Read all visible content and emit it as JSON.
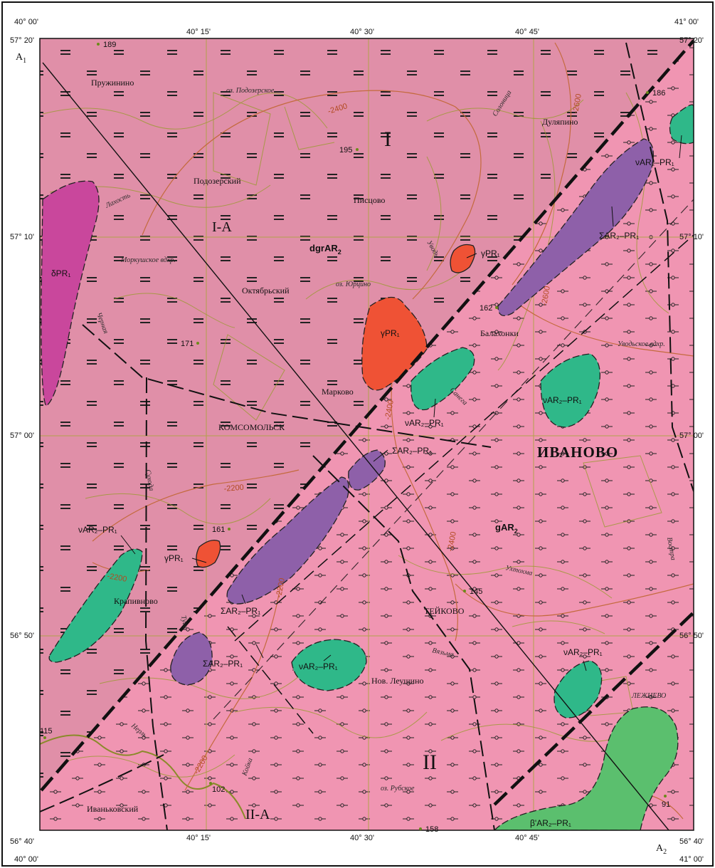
{
  "map": {
    "colors": {
      "background_dgr": "#e08fa8",
      "background_g": "#f095b2",
      "delta": "#c9479c",
      "gamma": "#ef5235",
      "nu": "#2fb889",
      "sigma": "#8e60a9",
      "beta": "#5bbf6e",
      "grid": "#b2a24a",
      "isoline": "#b9613a",
      "roads": "#8a8a2a"
    },
    "coords": {
      "top_lon": [
        "40° 00'",
        "40° 15'",
        "40° 30'",
        "40° 45'",
        "41° 00'"
      ],
      "bottom_lon": [
        "40° 00'",
        "40° 15'",
        "40° 30'",
        "40° 45'",
        "41° 00'"
      ],
      "left_lat": [
        "57° 20'",
        "57° 10'",
        "57° 00'",
        "56° 50'",
        "56° 40'"
      ],
      "right_lat": [
        "57° 20'",
        "57° 10'",
        "57° 00'",
        "56° 50'",
        "56° 40'"
      ],
      "profile_start": "A",
      "profile_start_sub": "1",
      "profile_end": "A",
      "profile_end_sub": "2"
    },
    "towns": {
      "ivanovo": "ИВАНОВО",
      "komsomolsk": "КОМСОМОЛЬСК",
      "teykovo": "ТЕЙКОВО",
      "lezhnevo": "ЛЕЖНЕВО",
      "pruzhinino": "Пружинино",
      "podozersky": "Подозерский",
      "pistsovo": "Писцово",
      "dulyapino": "Дуляпино",
      "oktyabrsky": "Октябрьский",
      "balakhonki": "Балахонки",
      "markovo": "Марково",
      "krapivnovo": "Крапивново",
      "nov_leushino": "Нов. Леушино",
      "ivankovsky": "Иваньковский"
    },
    "hydro": {
      "oz_podozerskoe": "оз. Подозерское",
      "solonitsa": "Солоница",
      "lakhost": "Лахость",
      "morkushskoe": "Моркушское вдхр.",
      "chernaya": "Черная",
      "uvod": "Уводь",
      "oz_yurtsino": "оз. Юрцино",
      "uvodskoe": "Уводьское вдхр.",
      "sanega": "Санега",
      "sukhoda": "Сухода",
      "vostra": "Востра",
      "ukhtokhma": "Ухтохма",
      "tuga": "Туга",
      "vyazma": "Вязьма",
      "nerl": "Нерль",
      "koyka": "Койка",
      "oz_rubskoe": "оз. Рубское"
    },
    "elevations": [
      "189",
      "186",
      "195",
      "171",
      "162",
      "161",
      "145",
      "115",
      "102",
      "91",
      "158"
    ],
    "isolines": [
      "-2400",
      "-2600",
      "-2600",
      "-2400",
      "-2200",
      "-2200",
      "-2200",
      "-2400",
      "-2200"
    ],
    "regions": {
      "r1": "I",
      "r1a": "I-A",
      "r2": "II",
      "r2a": "II-A"
    },
    "units": {
      "dgr_base": "dgrAR",
      "dgr_sub": "2",
      "g_base": "gAR",
      "g_sub": "2"
    },
    "rock_labels": {
      "delta": "δPR₁",
      "gamma1": "γPR₁",
      "gamma2": "γPR₁",
      "gamma3": "γPR₁",
      "nu1": "νAR₂–PR₁",
      "nu2": "ΣAR₂–PR₁",
      "nu3": "νAR₂–PR₁",
      "nu4": "νAR₂–PR₁",
      "sigma1": "ΣAR₂–PR₁",
      "nu5": "νAR₂–PR₁",
      "sigma2": "ΣAR₂–PR₁",
      "sigma3": "ΣAR₂–PR₁",
      "nu6": "νAR₂–PR₁",
      "nu7": "νAR₂–PR₁",
      "beta": "β'AR₂–PR₁"
    }
  }
}
